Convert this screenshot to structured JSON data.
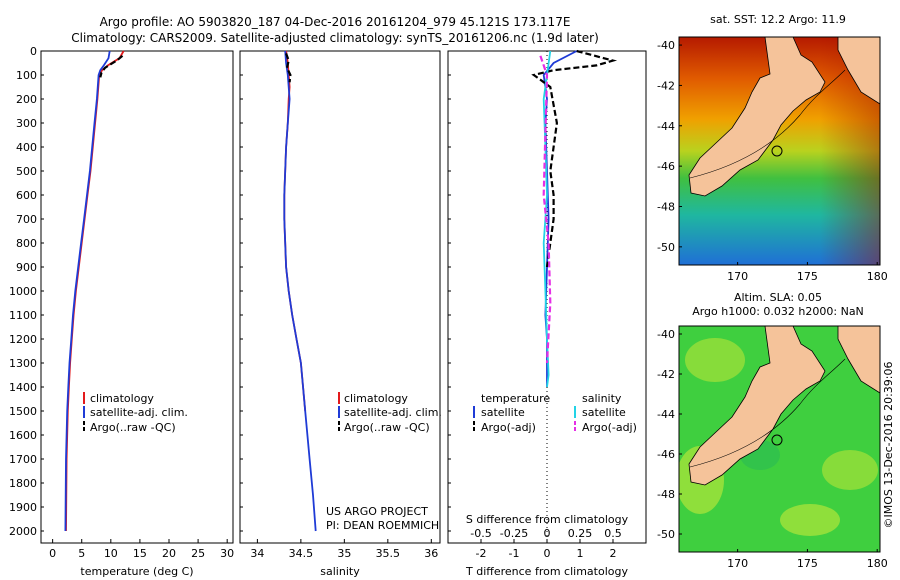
{
  "header": {
    "line1": "Argo profile: AO 5903820_187 04-Dec-2016 20161204_979 45.121S 173.117E",
    "line2": "Climatology: CARS2009. Satellite-adjusted climatology: synTS_20161206.nc (1.9d later)"
  },
  "colors": {
    "climatology": "#e31a1c",
    "satellite": "#1f3bd6",
    "argo": "#000000",
    "sal_satellite": "#22d3e6",
    "sal_argo": "#e52ee5",
    "land": "#f5c39a"
  },
  "chart_data": [
    {
      "type": "line",
      "name": "temperature",
      "xlabel": "temperature (deg C)",
      "xlim": [
        -2,
        31
      ],
      "xticks": [
        0,
        5,
        10,
        15,
        20,
        25,
        30
      ],
      "ylim": [
        0,
        2050
      ],
      "yticks": [
        0,
        100,
        200,
        300,
        400,
        500,
        600,
        700,
        800,
        900,
        1000,
        1100,
        1200,
        1300,
        1400,
        1500,
        1600,
        1700,
        1800,
        1900,
        2000
      ],
      "legend": [
        "climatology",
        "satellite-adj. clim.",
        "Argo(..raw -QC)"
      ],
      "series": [
        {
          "name": "climatology",
          "color_key": "climatology",
          "x": [
            12.2,
            11.5,
            9.5,
            8.5,
            8.0,
            7.7,
            7.3,
            6.9,
            6.5,
            6.0,
            5.5,
            5.0,
            4.5,
            4.0,
            3.6,
            3.3,
            3.0,
            2.8,
            2.6,
            2.5,
            2.4,
            2.3
          ],
          "y": [
            0,
            30,
            60,
            80,
            100,
            200,
            300,
            400,
            500,
            600,
            700,
            800,
            900,
            1000,
            1100,
            1200,
            1300,
            1400,
            1500,
            1600,
            1700,
            2000
          ]
        },
        {
          "name": "satellite-adj. clim.",
          "color_key": "satellite",
          "x": [
            9.8,
            9.6,
            8.8,
            8.2,
            7.9,
            7.6,
            7.2,
            6.8,
            6.4,
            5.9,
            5.4,
            4.9,
            4.4,
            3.9,
            3.5,
            3.2,
            2.9,
            2.7,
            2.5,
            2.4,
            2.3,
            2.2
          ],
          "y": [
            0,
            30,
            60,
            80,
            100,
            200,
            300,
            400,
            500,
            600,
            700,
            800,
            900,
            1000,
            1100,
            1200,
            1300,
            1400,
            1500,
            1600,
            1700,
            2000
          ]
        },
        {
          "name": "Argo(..raw -QC)",
          "color_key": "argo",
          "x": [
            12.0,
            11.0,
            9.0,
            8.4,
            8.2
          ],
          "y": [
            20,
            40,
            70,
            90,
            110
          ]
        }
      ]
    },
    {
      "type": "line",
      "name": "salinity",
      "xlabel": "salinity",
      "xlim": [
        33.8,
        36.1
      ],
      "xticks": [
        34,
        34.5,
        35,
        35.5,
        36
      ],
      "ylim": [
        0,
        2050
      ],
      "legend": [
        "climatology",
        "satellite-adj. clim.",
        "Argo(..raw -QC)"
      ],
      "annotation": [
        "US ARGO PROJECT",
        "PI: DEAN ROEMMICH"
      ],
      "series": [
        {
          "name": "climatology",
          "color_key": "climatology",
          "x": [
            34.33,
            34.35,
            34.36,
            34.37,
            34.36,
            34.35,
            34.33,
            34.32,
            34.31,
            34.31,
            34.32,
            34.33,
            34.36,
            34.4,
            34.45,
            34.5,
            34.55
          ],
          "y": [
            0,
            50,
            100,
            150,
            200,
            300,
            400,
            500,
            600,
            700,
            800,
            900,
            1000,
            1100,
            1200,
            1300,
            1500
          ]
        },
        {
          "name": "satellite-adj. clim.",
          "color_key": "satellite",
          "x": [
            34.32,
            34.33,
            34.35,
            34.36,
            34.37,
            34.36,
            34.35,
            34.33,
            34.32,
            34.31,
            34.31,
            34.32,
            34.33,
            34.36,
            34.4,
            34.45,
            34.5,
            34.55,
            34.6,
            34.64,
            34.67
          ],
          "y": [
            0,
            50,
            100,
            150,
            200,
            250,
            300,
            400,
            500,
            600,
            700,
            800,
            900,
            1000,
            1100,
            1200,
            1300,
            1500,
            1700,
            1850,
            2000
          ]
        },
        {
          "name": "Argo(..raw -QC)",
          "color_key": "argo",
          "x": [
            34.33,
            34.36,
            34.34,
            34.38,
            34.37
          ],
          "y": [
            10,
            40,
            70,
            100,
            130
          ]
        }
      ]
    },
    {
      "type": "line",
      "name": "differences",
      "xlabel": "T difference from climatology",
      "xlabel_top": "S difference from climatology",
      "xlim": [
        -3,
        3
      ],
      "xticks": [
        -2,
        -1,
        0,
        1,
        2
      ],
      "s_ticks": [
        "-0.5",
        "-0.25",
        "0",
        "0.25",
        "0.5"
      ],
      "legend_left_title": "temperature",
      "legend_right_title": "salinity",
      "legend": [
        "satellite",
        "Argo(-adj)",
        "satellite",
        "Argo(-adj)"
      ],
      "series": [
        {
          "name": "temperature satellite",
          "color_key": "satellite",
          "x": [
            0.9,
            0.2,
            -0.1,
            0.0,
            -0.05,
            0.0,
            0.05,
            0.0,
            -0.05,
            0.0,
            0.0,
            0.0
          ],
          "y": [
            0,
            50,
            100,
            200,
            300,
            500,
            700,
            900,
            1100,
            1200,
            1300,
            1400
          ]
        },
        {
          "name": "temperature Argo(-adj)",
          "color_key": "argo",
          "x": [
            0.9,
            2.0,
            1.5,
            0.2,
            -0.4,
            0.1,
            0.3,
            0.2,
            0.1,
            0.2,
            0.2,
            0.1,
            0.0
          ],
          "y": [
            0,
            40,
            60,
            80,
            100,
            150,
            300,
            400,
            500,
            600,
            700,
            800,
            900
          ]
        },
        {
          "name": "salinity satellite",
          "color_key": "sal_satellite",
          "x": [
            0.1,
            0.0,
            -0.1,
            -0.05,
            0.0,
            -0.1,
            -0.05,
            0.0,
            0.05,
            0.0
          ],
          "y": [
            0,
            100,
            200,
            400,
            600,
            800,
            1000,
            1200,
            1350,
            1400
          ]
        },
        {
          "name": "salinity Argo(-adj)",
          "color_key": "sal_argo",
          "x": [
            -0.2,
            -0.1,
            0.0,
            -0.1,
            0.05,
            0.1,
            0.0
          ],
          "y": [
            20,
            60,
            100,
            600,
            800,
            1050,
            1300
          ]
        }
      ]
    }
  ],
  "maps": [
    {
      "title": "sat. SST: 12.2 Argo: 11.9",
      "lat_ticks": [
        "-40",
        "-42",
        "-44",
        "-46",
        "-48",
        "-50"
      ],
      "lon_ticks": [
        "170",
        "175",
        "180"
      ]
    },
    {
      "title1": "Altim. SLA: 0.05",
      "title2": "Argo h1000: 0.032 h2000: NaN",
      "lat_ticks": [
        "-40",
        "-42",
        "-44",
        "-46",
        "-48",
        "-50"
      ],
      "lon_ticks": [
        "170",
        "175",
        "180"
      ]
    }
  ],
  "footer_stamp": "©IMOS 13-Dec-2016 20:39:06"
}
